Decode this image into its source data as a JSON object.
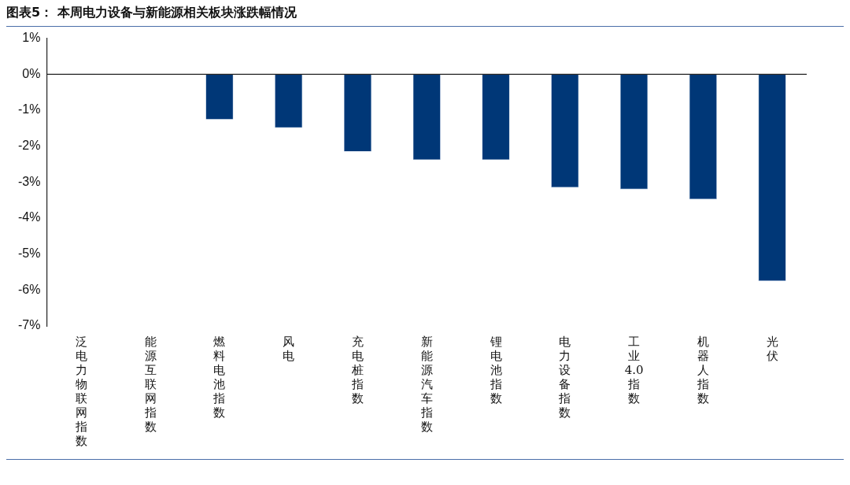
{
  "chart_data": {
    "type": "bar",
    "title": "图表5：  本周电力设备与新能源相关板块涨跌幅情况",
    "categories": [
      "泛电力物联网指数",
      "能源互联网指数",
      "燃料电池指数",
      "风电",
      "充电桩指数",
      "新能源汽车指数",
      "锂电池指数",
      "电力设备指数",
      "工业4.0指数",
      "机器人指数",
      "光伏"
    ],
    "values": [
      0.01,
      -0.01,
      -1.26,
      -1.49,
      -2.15,
      -2.38,
      -2.38,
      -3.15,
      -3.2,
      -3.48,
      -5.75
    ],
    "color": "#003777",
    "ylim": [
      -7,
      1
    ],
    "yticks": [
      {
        "value": 1,
        "label": "1%"
      },
      {
        "value": 0,
        "label": "0%"
      },
      {
        "value": -1,
        "label": "-1%"
      },
      {
        "value": -2,
        "label": "-2%"
      },
      {
        "value": -3,
        "label": "-3%"
      },
      {
        "value": -4,
        "label": "-4%"
      },
      {
        "value": -5,
        "label": "-5%"
      },
      {
        "value": -6,
        "label": "-6%"
      },
      {
        "value": -7,
        "label": "-7%"
      }
    ],
    "ref_lines": [
      {
        "axis": "y",
        "value": 0,
        "color": "#222222"
      }
    ],
    "grid": false,
    "legend": false
  }
}
